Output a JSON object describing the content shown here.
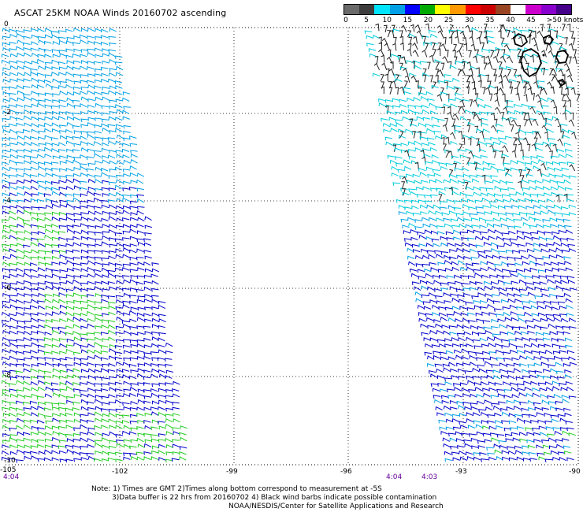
{
  "title": "ASCAT 25KM NOAA Winds 20160702 ascending",
  "legend": {
    "colors": [
      "#6a6a6a",
      "#3c3c3c",
      "#00e5ff",
      "#00a0e6",
      "#0000ff",
      "#00aa00",
      "#ffff00",
      "#ff9900",
      "#ff0000",
      "#cc0000",
      "#994422",
      "#ffffff",
      "#cc00cc",
      "#8800cc",
      "#440088"
    ],
    "labels": [
      "0",
      "5",
      "10",
      "15",
      "20",
      "25",
      "30",
      "35",
      "40",
      "45",
      ">50 knots"
    ]
  },
  "map": {
    "x_ticks": [
      "-105",
      "-102",
      "-99",
      "-96",
      "-93",
      "-90"
    ],
    "y_ticks": [
      "0",
      "-2",
      "-4",
      "-6",
      "-8",
      "-10"
    ],
    "lon_range": [
      -105,
      -90
    ],
    "lat_range": [
      -10,
      0
    ]
  },
  "time_labels": [
    "4:04",
    "4:04",
    "4:03"
  ],
  "notes": {
    "line1": "Note: 1) Times are GMT 2)Times along bottom correspond to measurement at -5S",
    "line2": "3)Data buffer is 22 hrs from 20160702 4) Black wind barbs indicate possible contamination",
    "line3": "NOAA/NESDIS/Center for Satellite Applications and Research"
  }
}
